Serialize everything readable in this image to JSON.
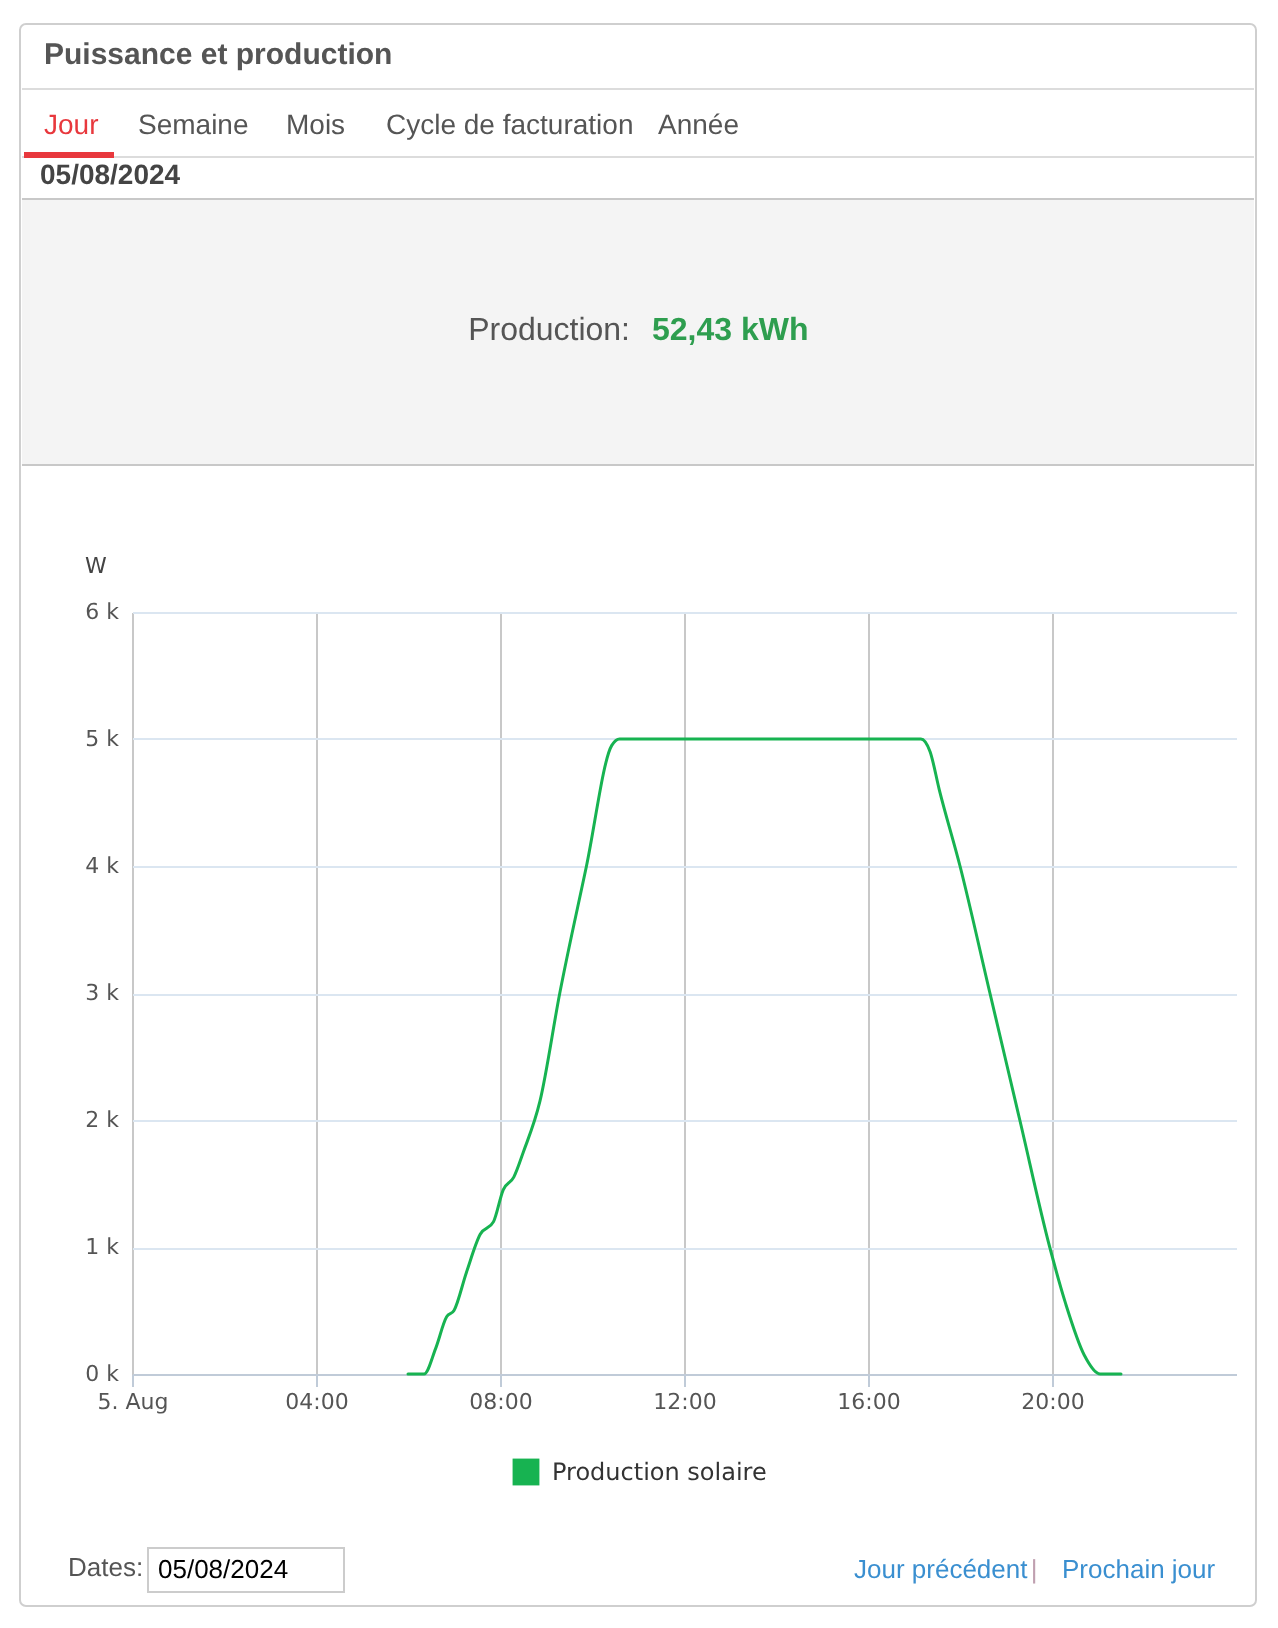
{
  "chart_data": {
    "type": "line",
    "title": "Puissance et production",
    "ylabel": "W",
    "x": [
      6.0,
      6.35,
      6.6,
      6.84,
      7.0,
      7.27,
      7.57,
      7.86,
      8.07,
      8.3,
      8.51,
      8.87,
      9.3,
      9.88,
      10.43,
      10.6,
      12,
      13,
      14,
      15,
      16,
      17.15,
      17.35,
      17.55,
      18.0,
      18.65,
      19.3,
      19.95,
      20.3,
      20.7,
      21.05,
      21.5
    ],
    "series": [
      {
        "name": "Production solaire",
        "color": "#17b351",
        "values": [
          0,
          0,
          200,
          450,
          500,
          800,
          1100,
          1200,
          1450,
          1550,
          1750,
          2150,
          3000,
          4000,
          4950,
          5000,
          5000,
          5000,
          5000,
          5000,
          5000,
          5000,
          4900,
          4600,
          4000,
          3000,
          2000,
          1000,
          550,
          150,
          0,
          0
        ]
      }
    ],
    "xlim": [
      0,
      24
    ],
    "xticks": [
      {
        "value": 0,
        "label": "5. Aug"
      },
      {
        "value": 4,
        "label": "04:00"
      },
      {
        "value": 8,
        "label": "08:00"
      },
      {
        "value": 12,
        "label": "12:00"
      },
      {
        "value": 16,
        "label": "16:00"
      },
      {
        "value": 20,
        "label": "20:00"
      }
    ],
    "ylim": [
      0,
      6000
    ],
    "yticks": [
      {
        "value": 0,
        "label": "0 k"
      },
      {
        "value": 1000,
        "label": "1 k"
      },
      {
        "value": 2000,
        "label": "2 k"
      },
      {
        "value": 3000,
        "label": "3 k"
      },
      {
        "value": 4000,
        "label": "4 k"
      },
      {
        "value": 5000,
        "label": "5 k"
      },
      {
        "value": 6000,
        "label": "6 k"
      }
    ],
    "grid": true,
    "legend": "bottom",
    "annotations": [
      "Jour",
      "Semaine",
      "Mois",
      "Cycle de facturation",
      "Année",
      "05/08/2024",
      "Production:",
      "52,43 kWh",
      "Dates:",
      "05/08/2024",
      "Jour précédent",
      "|",
      "Prochain jour"
    ]
  }
}
